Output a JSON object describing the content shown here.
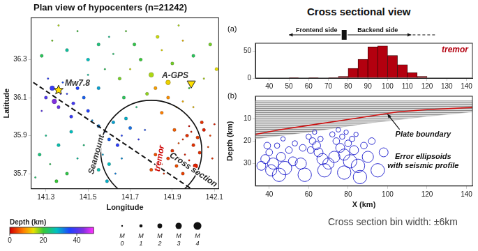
{
  "heading": "Cross sectional view",
  "note": "Cross section bin width: ±6km",
  "chart_data": [
    {
      "type": "scatter",
      "title": "Plan view of hypocenters (n=21242)",
      "x_label": "Longitude",
      "y_label": "Latitude",
      "xlim": [
        141.23,
        142.12
      ],
      "xticks": [
        141.3,
        141.5,
        141.7,
        141.9,
        142.1
      ],
      "ylim": [
        35.62,
        36.52
      ],
      "yticks": [
        35.7,
        35.9,
        36.1,
        36.3
      ],
      "grid": false,
      "points": [
        {
          "x": 141.97,
          "y": 35.9,
          "depth": 3,
          "magnitude": 1
        },
        {
          "x": 141.99,
          "y": 35.92,
          "depth": 2,
          "magnitude": 0
        },
        {
          "x": 142.02,
          "y": 35.89,
          "depth": 4,
          "magnitude": 1
        },
        {
          "x": 141.95,
          "y": 35.88,
          "depth": 3,
          "magnitude": 0
        },
        {
          "x": 142.05,
          "y": 35.93,
          "depth": 2,
          "magnitude": 1
        },
        {
          "x": 141.93,
          "y": 35.86,
          "depth": 5,
          "magnitude": 0
        },
        {
          "x": 142.0,
          "y": 35.85,
          "depth": 3,
          "magnitude": 1
        },
        {
          "x": 142.08,
          "y": 35.9,
          "depth": 4,
          "magnitude": 0
        },
        {
          "x": 141.9,
          "y": 35.82,
          "depth": 3,
          "magnitude": 1
        },
        {
          "x": 141.96,
          "y": 35.8,
          "depth": 2,
          "magnitude": 0
        },
        {
          "x": 141.88,
          "y": 35.78,
          "depth": 4,
          "magnitude": 1
        },
        {
          "x": 141.85,
          "y": 35.75,
          "depth": 3,
          "magnitude": 0
        },
        {
          "x": 141.92,
          "y": 35.74,
          "depth": 5,
          "magnitude": 1
        },
        {
          "x": 141.98,
          "y": 35.77,
          "depth": 2,
          "magnitude": 0
        },
        {
          "x": 142.03,
          "y": 35.81,
          "depth": 3,
          "magnitude": 1
        },
        {
          "x": 142.07,
          "y": 35.84,
          "depth": 4,
          "magnitude": 0
        },
        {
          "x": 141.82,
          "y": 35.8,
          "depth": 5,
          "magnitude": 1
        },
        {
          "x": 141.86,
          "y": 35.7,
          "depth": 3,
          "magnitude": 0
        },
        {
          "x": 141.95,
          "y": 35.7,
          "depth": 4,
          "magnitude": 1
        },
        {
          "x": 142.1,
          "y": 35.96,
          "depth": 2,
          "magnitude": 0
        },
        {
          "x": 142.04,
          "y": 35.97,
          "depth": 3,
          "magnitude": 1
        },
        {
          "x": 141.98,
          "y": 35.95,
          "depth": 1,
          "magnitude": 0
        },
        {
          "x": 142.09,
          "y": 35.78,
          "depth": 3,
          "magnitude": 0
        },
        {
          "x": 141.8,
          "y": 35.72,
          "depth": 5,
          "magnitude": 1
        },
        {
          "x": 141.91,
          "y": 35.93,
          "depth": 6,
          "magnitude": 1
        },
        {
          "x": 142.01,
          "y": 35.74,
          "depth": 2,
          "magnitude": 2
        },
        {
          "x": 141.3,
          "y": 36.1,
          "depth": 40,
          "magnitude": 1
        },
        {
          "x": 141.33,
          "y": 36.15,
          "depth": 38,
          "magnitude": 2
        },
        {
          "x": 141.36,
          "y": 36.05,
          "depth": 42,
          "magnitude": 1
        },
        {
          "x": 141.4,
          "y": 36.12,
          "depth": 37,
          "magnitude": 0
        },
        {
          "x": 141.43,
          "y": 36.07,
          "depth": 39,
          "magnitude": 1
        },
        {
          "x": 141.28,
          "y": 36.03,
          "depth": 41,
          "magnitude": 0
        },
        {
          "x": 141.45,
          "y": 36.15,
          "depth": 36,
          "magnitude": 1
        },
        {
          "x": 141.38,
          "y": 36.18,
          "depth": 35,
          "magnitude": 0
        },
        {
          "x": 141.42,
          "y": 36.0,
          "depth": 38,
          "magnitude": 1
        },
        {
          "x": 141.34,
          "y": 36.08,
          "depth": 44,
          "magnitude": 2
        },
        {
          "x": 141.48,
          "y": 36.1,
          "depth": 34,
          "magnitude": 1
        },
        {
          "x": 141.31,
          "y": 36.2,
          "depth": 37,
          "magnitude": 0
        },
        {
          "x": 141.5,
          "y": 36.03,
          "depth": 36,
          "magnitude": 1
        },
        {
          "x": 141.37,
          "y": 36.12,
          "depth": 40,
          "magnitude": 0
        },
        {
          "x": 141.65,
          "y": 36.2,
          "depth": 18,
          "magnitude": 1
        },
        {
          "x": 141.7,
          "y": 36.25,
          "depth": 15,
          "magnitude": 0
        },
        {
          "x": 141.75,
          "y": 36.3,
          "depth": 20,
          "magnitude": 1
        },
        {
          "x": 141.8,
          "y": 36.22,
          "depth": 16,
          "magnitude": 2
        },
        {
          "x": 141.85,
          "y": 36.35,
          "depth": 14,
          "magnitude": 0
        },
        {
          "x": 141.9,
          "y": 36.28,
          "depth": 18,
          "magnitude": 1
        },
        {
          "x": 141.95,
          "y": 36.4,
          "depth": 12,
          "magnitude": 0
        },
        {
          "x": 142.0,
          "y": 36.32,
          "depth": 22,
          "magnitude": 1
        },
        {
          "x": 142.05,
          "y": 36.2,
          "depth": 16,
          "magnitude": 0
        },
        {
          "x": 141.72,
          "y": 36.38,
          "depth": 21,
          "magnitude": 1
        },
        {
          "x": 141.68,
          "y": 36.45,
          "depth": 19,
          "magnitude": 0
        },
        {
          "x": 141.78,
          "y": 36.12,
          "depth": 17,
          "magnitude": 1
        },
        {
          "x": 141.88,
          "y": 36.18,
          "depth": 13,
          "magnitude": 2
        },
        {
          "x": 141.62,
          "y": 36.33,
          "depth": 23,
          "magnitude": 0
        },
        {
          "x": 141.83,
          "y": 36.42,
          "depth": 15,
          "magnitude": 1
        },
        {
          "x": 141.98,
          "y": 36.15,
          "depth": 20,
          "magnitude": 0
        },
        {
          "x": 142.08,
          "y": 36.38,
          "depth": 18,
          "magnitude": 1
        },
        {
          "x": 141.73,
          "y": 36.05,
          "depth": 24,
          "magnitude": 0
        },
        {
          "x": 141.67,
          "y": 36.1,
          "depth": 22,
          "magnitude": 1
        },
        {
          "x": 141.93,
          "y": 36.48,
          "depth": 16,
          "magnitude": 0
        },
        {
          "x": 142.11,
          "y": 36.25,
          "depth": 14,
          "magnitude": 1
        },
        {
          "x": 141.6,
          "y": 36.42,
          "depth": 25,
          "magnitude": 0
        },
        {
          "x": 141.88,
          "y": 36.1,
          "depth": 9,
          "magnitude": 1
        },
        {
          "x": 141.92,
          "y": 36.05,
          "depth": 10,
          "magnitude": 0
        },
        {
          "x": 141.85,
          "y": 36.02,
          "depth": 8,
          "magnitude": 1
        },
        {
          "x": 141.95,
          "y": 36.08,
          "depth": 11,
          "magnitude": 0
        },
        {
          "x": 141.82,
          "y": 36.15,
          "depth": 10,
          "magnitude": 1
        },
        {
          "x": 142.0,
          "y": 36.05,
          "depth": 12,
          "magnitude": 0
        },
        {
          "x": 141.55,
          "y": 35.95,
          "depth": 32,
          "magnitude": 1
        },
        {
          "x": 141.58,
          "y": 35.92,
          "depth": 35,
          "magnitude": 0
        },
        {
          "x": 141.62,
          "y": 35.97,
          "depth": 30,
          "magnitude": 1
        },
        {
          "x": 141.66,
          "y": 35.9,
          "depth": 36,
          "magnitude": 0
        },
        {
          "x": 141.7,
          "y": 35.94,
          "depth": 33,
          "magnitude": 1
        },
        {
          "x": 141.74,
          "y": 35.88,
          "depth": 38,
          "magnitude": 0
        },
        {
          "x": 141.6,
          "y": 35.88,
          "depth": 34,
          "magnitude": 1
        },
        {
          "x": 141.52,
          "y": 35.98,
          "depth": 31,
          "magnitude": 0
        },
        {
          "x": 141.68,
          "y": 35.99,
          "depth": 29,
          "magnitude": 1
        },
        {
          "x": 141.77,
          "y": 35.93,
          "depth": 35,
          "magnitude": 0
        },
        {
          "x": 141.64,
          "y": 35.85,
          "depth": 37,
          "magnitude": 1
        },
        {
          "x": 141.27,
          "y": 35.8,
          "depth": 24,
          "magnitude": 1
        },
        {
          "x": 141.32,
          "y": 35.75,
          "depth": 22,
          "magnitude": 0
        },
        {
          "x": 141.36,
          "y": 35.85,
          "depth": 27,
          "magnitude": 1
        },
        {
          "x": 141.3,
          "y": 35.9,
          "depth": 25,
          "magnitude": 0
        },
        {
          "x": 141.4,
          "y": 35.7,
          "depth": 21,
          "magnitude": 1
        },
        {
          "x": 141.45,
          "y": 35.78,
          "depth": 26,
          "magnitude": 0
        },
        {
          "x": 141.25,
          "y": 35.68,
          "depth": 23,
          "magnitude": 0
        },
        {
          "x": 141.42,
          "y": 35.92,
          "depth": 28,
          "magnitude": 1
        },
        {
          "x": 141.48,
          "y": 35.85,
          "depth": 24,
          "magnitude": 0
        },
        {
          "x": 141.35,
          "y": 35.66,
          "depth": 20,
          "magnitude": 1
        },
        {
          "x": 141.57,
          "y": 35.8,
          "depth": 30,
          "magnitude": 0
        },
        {
          "x": 141.6,
          "y": 35.75,
          "depth": 28,
          "magnitude": 1
        },
        {
          "x": 141.63,
          "y": 35.7,
          "depth": 32,
          "magnitude": 0
        },
        {
          "x": 141.55,
          "y": 35.72,
          "depth": 27,
          "magnitude": 1
        },
        {
          "x": 141.66,
          "y": 35.78,
          "depth": 31,
          "magnitude": 0
        },
        {
          "x": 141.59,
          "y": 35.66,
          "depth": 29,
          "magnitude": 1
        },
        {
          "x": 141.28,
          "y": 36.32,
          "depth": 22,
          "magnitude": 1
        },
        {
          "x": 141.33,
          "y": 36.4,
          "depth": 18,
          "magnitude": 0
        },
        {
          "x": 141.4,
          "y": 36.35,
          "depth": 26,
          "magnitude": 1
        },
        {
          "x": 141.45,
          "y": 36.45,
          "depth": 20,
          "magnitude": 0
        },
        {
          "x": 141.5,
          "y": 36.3,
          "depth": 28,
          "magnitude": 1
        },
        {
          "x": 141.36,
          "y": 36.48,
          "depth": 16,
          "magnitude": 0
        },
        {
          "x": 141.55,
          "y": 36.38,
          "depth": 24,
          "magnitude": 1
        },
        {
          "x": 141.5,
          "y": 36.22,
          "depth": 26,
          "magnitude": 0
        },
        {
          "x": 141.55,
          "y": 36.15,
          "depth": 30,
          "magnitude": 1
        },
        {
          "x": 141.58,
          "y": 36.25,
          "depth": 22,
          "magnitude": 0
        }
      ],
      "colorbar": {
        "label": "Depth (km)",
        "range": [
          0,
          50
        ],
        "ticks": [
          0,
          20,
          40
        ]
      },
      "size_legend": {
        "label": "M",
        "values": [
          0,
          1,
          2,
          3,
          4
        ]
      },
      "cross_section": {
        "x": [
          141.24,
          142.03
        ],
        "y": [
          36.18,
          35.59
        ],
        "line_style": "dashed"
      },
      "circle": {
        "x": 141.8,
        "y": 35.82,
        "radius": 0.24
      },
      "annotations": [
        {
          "text": "Mw7.8",
          "x": 141.36,
          "y": 36.14,
          "marker": "star",
          "color": "#333333"
        },
        {
          "text": "A-GPS",
          "x": 141.99,
          "y": 36.17,
          "marker": "triangle-down",
          "color": "#333333"
        },
        {
          "text": "Seamount",
          "x": 141.54,
          "y": 35.8,
          "color": "#333333"
        },
        {
          "text": "tremor",
          "x": 141.84,
          "y": 35.78,
          "color": "#cc0000"
        },
        {
          "text": "Cross section",
          "x": 142.0,
          "y": 35.72,
          "color": "#222222"
        }
      ]
    },
    {
      "type": "histogram",
      "panel_label": "(a)",
      "bins": [
        40,
        45,
        50,
        55,
        60,
        65,
        70,
        75,
        80,
        85,
        90,
        95,
        100,
        105,
        110,
        115,
        120,
        125,
        130,
        135,
        140
      ],
      "series": [
        {
          "name": "tremor",
          "color": "#b3000f",
          "values": [
            0,
            0,
            1,
            0,
            1,
            0,
            1,
            3,
            18,
            35,
            58,
            60,
            42,
            25,
            10,
            3,
            0,
            0,
            0,
            0
          ]
        }
      ],
      "legend": "upper right",
      "xlim": [
        33,
        143
      ],
      "xticks": [
        40,
        50,
        60,
        70,
        80,
        90,
        100,
        110,
        120,
        130,
        140
      ],
      "ylim": [
        0,
        65
      ],
      "yticks": [
        0,
        50
      ],
      "grid": false,
      "sides": {
        "divider": 78,
        "frontend": {
          "label": "Frontend side",
          "to": 50
        },
        "backend": {
          "label": "Backend side",
          "to": 112,
          "dashed_to": 124
        }
      }
    },
    {
      "type": "scatter",
      "panel_label": "(b)",
      "x_label": "X (km)",
      "y_label": "Depth (km)",
      "xlim": [
        33,
        143
      ],
      "xticks": [
        40,
        60,
        80,
        100,
        120,
        140
      ],
      "ylim": [
        0,
        40
      ],
      "yticks": [
        10,
        20,
        30
      ],
      "grid": false,
      "seismic_profile": {
        "x": [
          33,
          60,
          90,
          120,
          143
        ],
        "top": [
          2,
          2,
          2,
          2,
          2
        ],
        "bottom": [
          19,
          16,
          12,
          9,
          7
        ]
      },
      "plate_boundary": {
        "color": "#d01010",
        "x": [
          33,
          45,
          60,
          75,
          90,
          105,
          120,
          143
        ],
        "y": [
          17,
          15,
          13,
          11,
          9,
          7,
          6,
          5
        ]
      },
      "ellipsoids": {
        "color": "#1a1acc",
        "x": [
          38,
          40,
          42,
          44,
          46,
          48,
          50,
          52,
          41,
          36,
          45,
          53,
          47,
          39,
          60,
          62,
          63,
          64,
          65,
          61,
          66,
          67,
          72,
          74,
          75,
          76,
          77,
          78,
          79,
          80,
          81,
          82,
          83,
          84,
          85,
          73,
          78,
          56,
          58,
          68,
          70,
          88,
          90,
          92,
          95,
          98,
          57,
          86
        ],
        "y": [
          28,
          25,
          30,
          22,
          27,
          32,
          24,
          29,
          33,
          31,
          35,
          21,
          19,
          22,
          18,
          20,
          16,
          22,
          25,
          24,
          19,
          28,
          17,
          20,
          15,
          23,
          18,
          26,
          16,
          21,
          29,
          19,
          24,
          17,
          31,
          27,
          34,
          30,
          35,
          33,
          30,
          22,
          27,
          20,
          33,
          25,
          23,
          36
        ],
        "error": [
          2,
          1.5,
          2.5,
          1.2,
          2,
          3,
          1.5,
          2,
          2.5,
          2,
          3,
          1.2,
          1,
          1.5,
          1.2,
          1.5,
          1,
          1.8,
          2,
          1.5,
          1.2,
          2.5,
          1.2,
          1.5,
          1,
          2,
          1.2,
          2.5,
          1,
          1.5,
          3,
          1.2,
          2,
          1,
          3,
          2.5,
          3,
          2.5,
          3,
          3,
          2.5,
          1.5,
          2.5,
          1.5,
          3,
          2,
          1.5,
          3
        ]
      },
      "annotations": [
        {
          "text": "Plate boundary",
          "x": 118,
          "y": 17,
          "arrow_to": [
            100,
            8
          ]
        },
        {
          "text": [
            "Error ellipsoids",
            "with seismic profile"
          ],
          "x": 118,
          "y": 29
        }
      ]
    }
  ]
}
